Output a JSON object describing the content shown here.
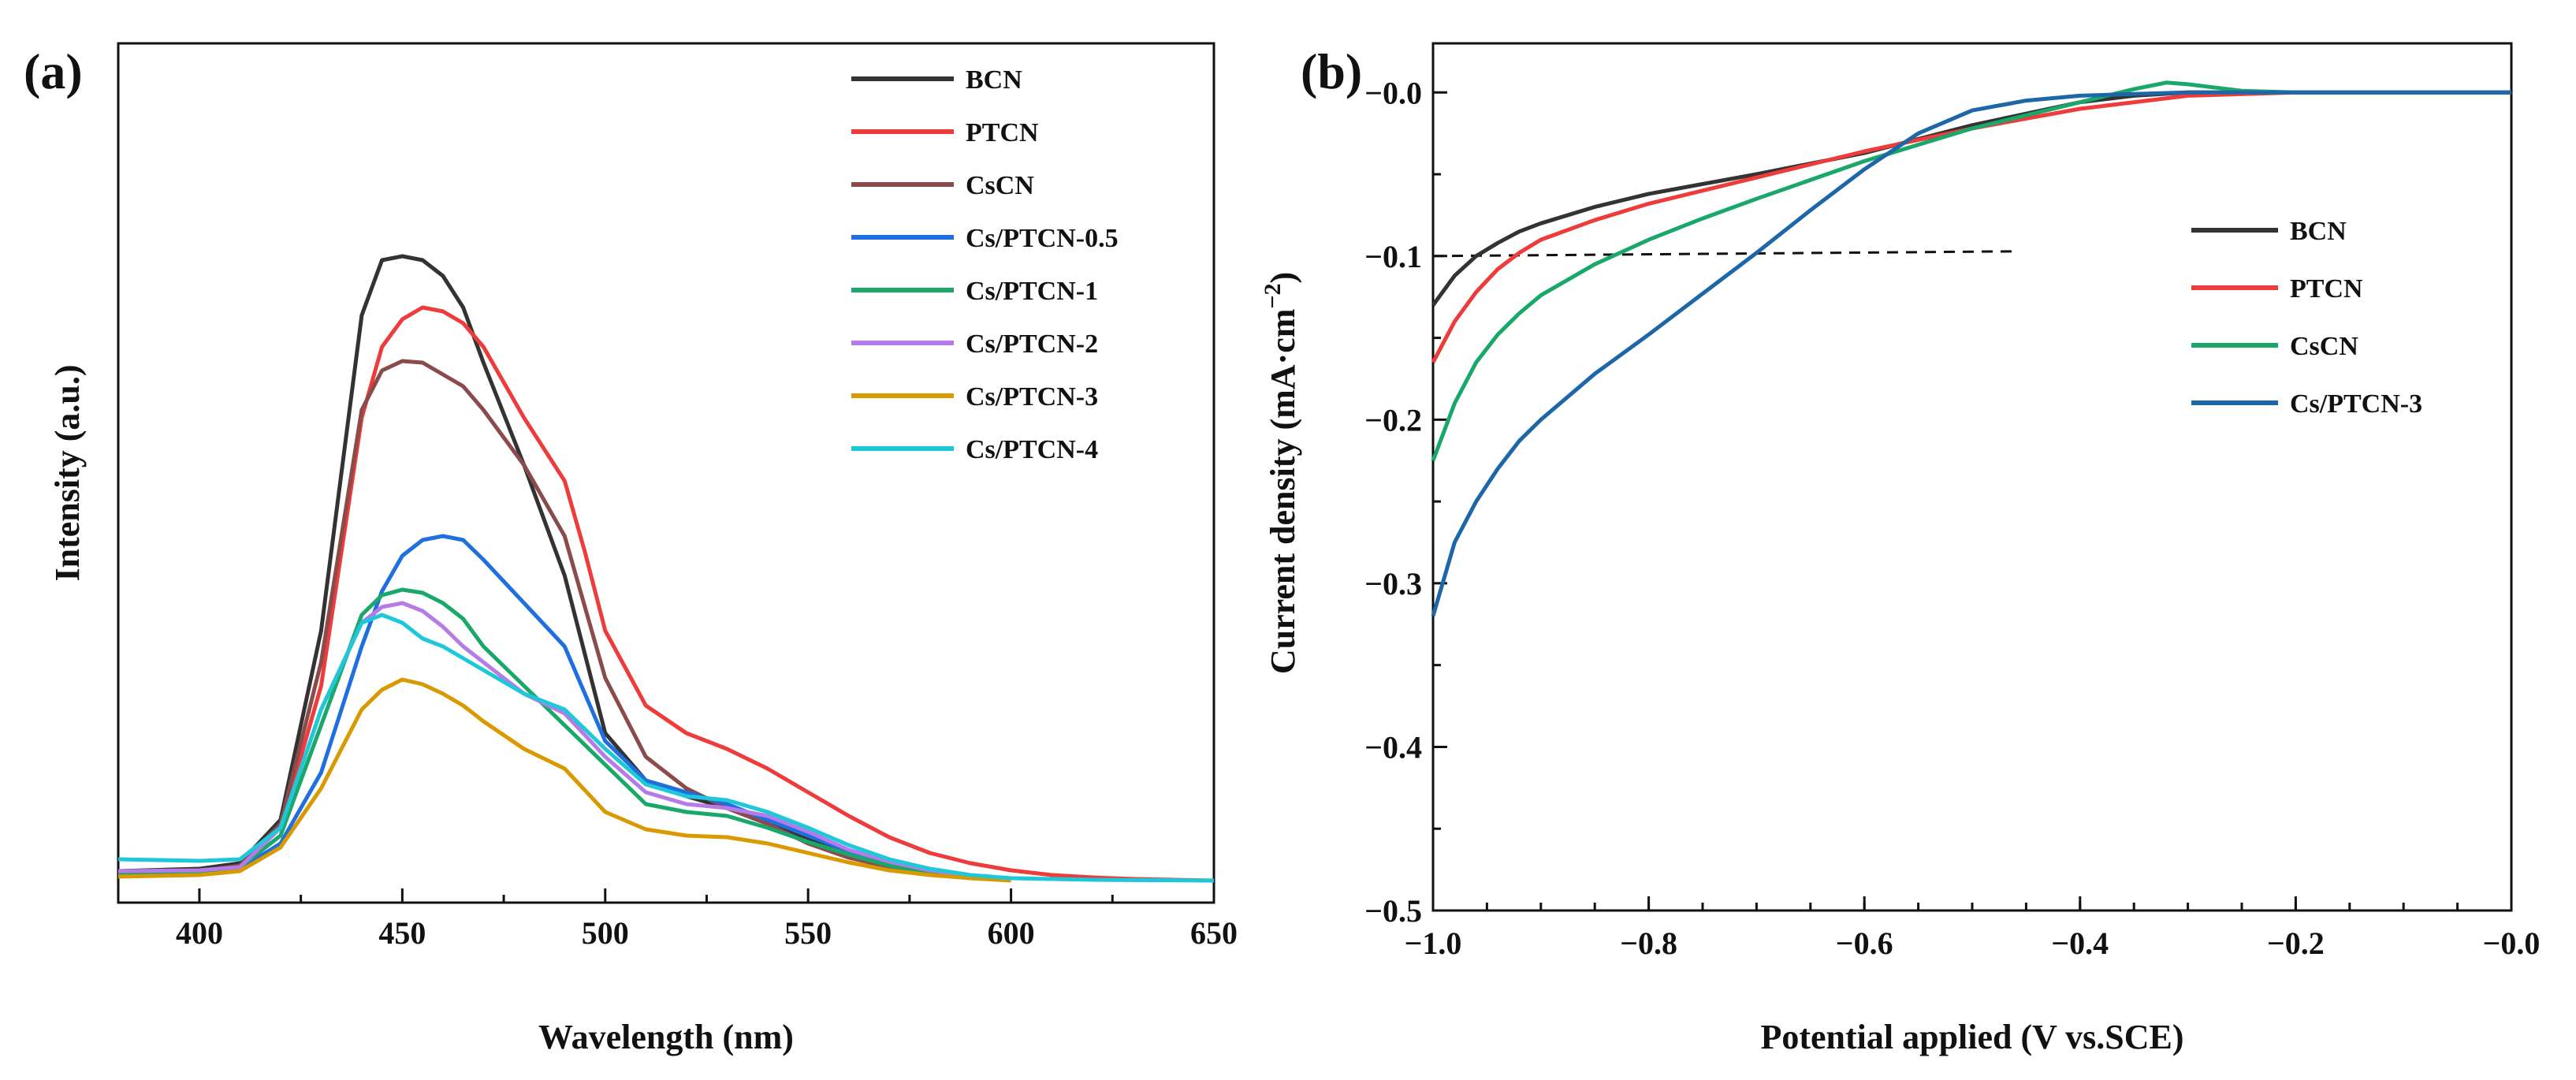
{
  "chart_data": [
    {
      "panel_label": "(a)",
      "type": "line",
      "title": "",
      "xlabel": "Wavelength (nm)",
      "ylabel": "Intensity (a.u.)",
      "xlim": [
        380,
        650
      ],
      "ylim": [
        0,
        1.0
      ],
      "xticks": [
        "400",
        "450",
        "500",
        "550",
        "600",
        "650"
      ],
      "yticks_shown": false,
      "legend_position": "top-right",
      "series": [
        {
          "name": "BCN",
          "color": "#333333",
          "x": [
            380,
            400,
            410,
            420,
            430,
            440,
            445,
            450,
            455,
            460,
            465,
            470,
            480,
            490,
            500,
            510,
            520,
            530,
            540,
            550,
            560,
            570,
            580,
            590,
            600
          ],
          "y": [
            0.015,
            0.018,
            0.025,
            0.08,
            0.32,
            0.72,
            0.79,
            0.795,
            0.79,
            0.77,
            0.73,
            0.66,
            0.53,
            0.39,
            0.19,
            0.13,
            0.11,
            0.095,
            0.075,
            0.055,
            0.035,
            0.022,
            0.012,
            0.006,
            0.004
          ]
        },
        {
          "name": "PTCN",
          "color": "#ee3b3b",
          "x": [
            380,
            400,
            410,
            420,
            430,
            440,
            445,
            450,
            455,
            460,
            465,
            470,
            480,
            490,
            495,
            500,
            510,
            520,
            530,
            540,
            550,
            560,
            570,
            580,
            590,
            600,
            610,
            620,
            630,
            650
          ],
          "y": [
            0.01,
            0.012,
            0.02,
            0.07,
            0.25,
            0.59,
            0.68,
            0.715,
            0.73,
            0.725,
            0.71,
            0.68,
            0.59,
            0.51,
            0.42,
            0.32,
            0.225,
            0.19,
            0.17,
            0.145,
            0.115,
            0.085,
            0.058,
            0.038,
            0.025,
            0.016,
            0.01,
            0.007,
            0.005,
            0.003
          ]
        },
        {
          "name": "CsCN",
          "color": "#8b4b4b",
          "x": [
            380,
            400,
            410,
            420,
            430,
            440,
            445,
            450,
            455,
            460,
            465,
            470,
            480,
            490,
            500,
            510,
            520,
            530,
            540,
            550,
            560,
            570,
            580,
            590,
            600
          ],
          "y": [
            0.012,
            0.015,
            0.022,
            0.075,
            0.28,
            0.6,
            0.65,
            0.662,
            0.66,
            0.645,
            0.63,
            0.6,
            0.53,
            0.44,
            0.26,
            0.16,
            0.12,
            0.095,
            0.075,
            0.05,
            0.032,
            0.02,
            0.012,
            0.007,
            0.004
          ]
        },
        {
          "name": "Cs/PTCN-0.5",
          "color": "#1f6fe0",
          "x": [
            380,
            400,
            410,
            420,
            430,
            440,
            445,
            450,
            455,
            460,
            465,
            470,
            480,
            490,
            495,
            500,
            510,
            520,
            530,
            540,
            550,
            560,
            570,
            580,
            590,
            600
          ],
          "y": [
            0.01,
            0.013,
            0.018,
            0.05,
            0.14,
            0.3,
            0.37,
            0.415,
            0.435,
            0.44,
            0.435,
            0.41,
            0.355,
            0.3,
            0.24,
            0.18,
            0.13,
            0.115,
            0.1,
            0.08,
            0.06,
            0.04,
            0.026,
            0.016,
            0.009,
            0.005
          ]
        },
        {
          "name": "Cs/PTCN-1",
          "color": "#1aa86a",
          "x": [
            380,
            400,
            410,
            420,
            430,
            440,
            445,
            450,
            455,
            460,
            465,
            470,
            480,
            490,
            500,
            510,
            520,
            530,
            540,
            550,
            560,
            570,
            580,
            590,
            600
          ],
          "y": [
            0.012,
            0.014,
            0.02,
            0.06,
            0.2,
            0.34,
            0.365,
            0.372,
            0.368,
            0.355,
            0.335,
            0.3,
            0.25,
            0.2,
            0.15,
            0.1,
            0.09,
            0.085,
            0.07,
            0.052,
            0.036,
            0.022,
            0.013,
            0.007,
            0.004
          ]
        },
        {
          "name": "Cs/PTCN-2",
          "color": "#b57be8",
          "x": [
            380,
            400,
            410,
            420,
            430,
            440,
            445,
            450,
            455,
            460,
            465,
            470,
            480,
            490,
            500,
            510,
            520,
            530,
            540,
            550,
            560,
            570,
            580,
            590,
            600
          ],
          "y": [
            0.015,
            0.016,
            0.02,
            0.07,
            0.22,
            0.33,
            0.35,
            0.355,
            0.345,
            0.325,
            0.3,
            0.28,
            0.24,
            0.215,
            0.16,
            0.115,
            0.1,
            0.095,
            0.085,
            0.065,
            0.042,
            0.027,
            0.016,
            0.009,
            0.005
          ]
        },
        {
          "name": "Cs/PTCN-3",
          "color": "#d89a00",
          "x": [
            380,
            400,
            410,
            420,
            430,
            440,
            445,
            450,
            455,
            460,
            465,
            470,
            480,
            490,
            500,
            510,
            520,
            530,
            540,
            550,
            560,
            570,
            580,
            590,
            600
          ],
          "y": [
            0.008,
            0.01,
            0.015,
            0.045,
            0.12,
            0.22,
            0.245,
            0.258,
            0.252,
            0.24,
            0.225,
            0.205,
            0.17,
            0.145,
            0.09,
            0.068,
            0.06,
            0.058,
            0.05,
            0.038,
            0.026,
            0.016,
            0.01,
            0.006,
            0.003
          ]
        },
        {
          "name": "Cs/PTCN-4",
          "color": "#1ec8d8",
          "x": [
            380,
            400,
            410,
            420,
            430,
            440,
            445,
            450,
            455,
            460,
            465,
            470,
            480,
            490,
            500,
            510,
            520,
            530,
            540,
            550,
            560,
            570,
            580,
            590,
            600,
            620,
            650
          ],
          "y": [
            0.03,
            0.028,
            0.03,
            0.07,
            0.22,
            0.33,
            0.34,
            0.33,
            0.31,
            0.3,
            0.285,
            0.27,
            0.24,
            0.22,
            0.17,
            0.125,
            0.11,
            0.105,
            0.09,
            0.07,
            0.048,
            0.03,
            0.018,
            0.01,
            0.006,
            0.004,
            0.003
          ]
        }
      ]
    },
    {
      "panel_label": "(b)",
      "type": "line",
      "title": "",
      "xlabel": "Potential applied (V vs.SCE)",
      "ylabel": "Current density (mA·cm",
      "ylabel_superscript": "−2",
      "ylabel_close": ")",
      "xlim": [
        -1.0,
        0.0
      ],
      "ylim": [
        -0.5,
        0.03
      ],
      "xticks": [
        "−1.0",
        "−0.8",
        "−0.6",
        "−0.4",
        "−0.2",
        "−0.0"
      ],
      "yticks": [
        "−0.0",
        "−0.1",
        "−0.2",
        "−0.3",
        "−0.4",
        "−0.5"
      ],
      "ytick_values": [
        0.0,
        -0.1,
        -0.2,
        -0.3,
        -0.4,
        -0.5
      ],
      "xtick_values": [
        -1.0,
        -0.8,
        -0.6,
        -0.4,
        -0.2,
        0.0
      ],
      "legend_position": "center-right",
      "reference_line": {
        "y": -0.1,
        "x_from": -1.0,
        "x_to": -0.46,
        "style": "dashed"
      },
      "series": [
        {
          "name": "BCN",
          "color": "#333333",
          "x": [
            -1.0,
            -0.98,
            -0.96,
            -0.94,
            -0.92,
            -0.9,
            -0.85,
            -0.8,
            -0.7,
            -0.6,
            -0.5,
            -0.4,
            -0.35,
            -0.3,
            -0.2,
            -0.1,
            0.0
          ],
          "y": [
            -0.13,
            -0.112,
            -0.1,
            -0.092,
            -0.085,
            -0.08,
            -0.07,
            -0.062,
            -0.05,
            -0.037,
            -0.02,
            -0.006,
            -0.002,
            0.0,
            0.0,
            0.0,
            0.0
          ]
        },
        {
          "name": "PTCN",
          "color": "#ee3b3b",
          "x": [
            -1.0,
            -0.98,
            -0.96,
            -0.94,
            -0.92,
            -0.9,
            -0.85,
            -0.8,
            -0.7,
            -0.6,
            -0.5,
            -0.4,
            -0.3,
            -0.2,
            -0.1,
            0.0
          ],
          "y": [
            -0.165,
            -0.14,
            -0.122,
            -0.108,
            -0.098,
            -0.09,
            -0.078,
            -0.068,
            -0.052,
            -0.036,
            -0.022,
            -0.01,
            -0.002,
            0.0,
            0.0,
            0.0
          ]
        },
        {
          "name": "CsCN",
          "color": "#1aa86a",
          "x": [
            -1.0,
            -0.98,
            -0.96,
            -0.94,
            -0.92,
            -0.9,
            -0.85,
            -0.8,
            -0.75,
            -0.7,
            -0.6,
            -0.5,
            -0.4,
            -0.35,
            -0.32,
            -0.3,
            -0.25,
            -0.2,
            -0.1,
            0.0
          ],
          "y": [
            -0.225,
            -0.19,
            -0.165,
            -0.148,
            -0.135,
            -0.124,
            -0.105,
            -0.09,
            -0.077,
            -0.065,
            -0.042,
            -0.022,
            -0.006,
            0.002,
            0.006,
            0.005,
            0.001,
            0.0,
            0.0,
            0.0
          ]
        },
        {
          "name": "Cs/PTCN-3",
          "color": "#1d66a8",
          "x": [
            -1.0,
            -0.98,
            -0.96,
            -0.94,
            -0.92,
            -0.9,
            -0.85,
            -0.8,
            -0.75,
            -0.7,
            -0.65,
            -0.6,
            -0.55,
            -0.5,
            -0.45,
            -0.4,
            -0.35,
            -0.3,
            -0.2,
            -0.1,
            0.0
          ],
          "y": [
            -0.32,
            -0.275,
            -0.25,
            -0.23,
            -0.213,
            -0.2,
            -0.172,
            -0.148,
            -0.123,
            -0.098,
            -0.072,
            -0.047,
            -0.025,
            -0.011,
            -0.005,
            -0.002,
            -0.001,
            0.0,
            0.0,
            0.0,
            0.0
          ]
        }
      ]
    }
  ]
}
